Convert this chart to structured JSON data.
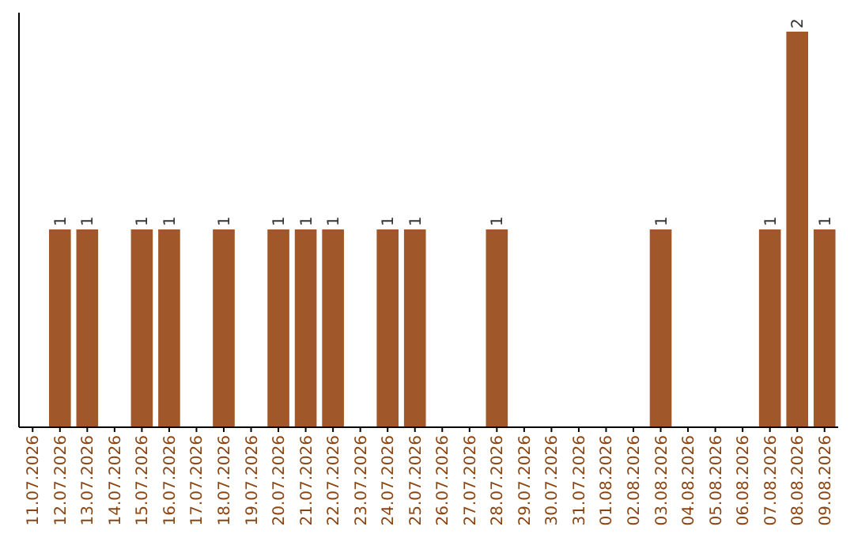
{
  "chart_data": {
    "type": "bar",
    "categories": [
      "11.07.2026",
      "12.07.2026",
      "13.07.2026",
      "14.07.2026",
      "15.07.2026",
      "16.07.2026",
      "17.07.2026",
      "18.07.2026",
      "19.07.2026",
      "20.07.2026",
      "21.07.2026",
      "22.07.2026",
      "23.07.2026",
      "24.07.2026",
      "25.07.2026",
      "26.07.2026",
      "27.07.2026",
      "28.07.2026",
      "29.07.2026",
      "30.07.2026",
      "31.07.2026",
      "01.08.2026",
      "02.08.2026",
      "03.08.2026",
      "04.08.2026",
      "05.08.2026",
      "06.08.2026",
      "07.08.2026",
      "08.08.2026",
      "09.08.2026"
    ],
    "values": [
      0,
      1,
      1,
      0,
      1,
      1,
      0,
      1,
      0,
      1,
      1,
      1,
      0,
      1,
      1,
      0,
      0,
      1,
      0,
      0,
      0,
      0,
      0,
      1,
      0,
      0,
      0,
      1,
      2,
      1
    ],
    "value_labels": [
      null,
      "1",
      "1",
      null,
      "1",
      "1",
      null,
      "1",
      null,
      "1",
      "1",
      "1",
      null,
      "1",
      "1",
      null,
      null,
      "1",
      null,
      null,
      null,
      null,
      null,
      "1",
      null,
      null,
      null,
      "1",
      "2",
      "1"
    ],
    "color": "#a0582a"
  }
}
